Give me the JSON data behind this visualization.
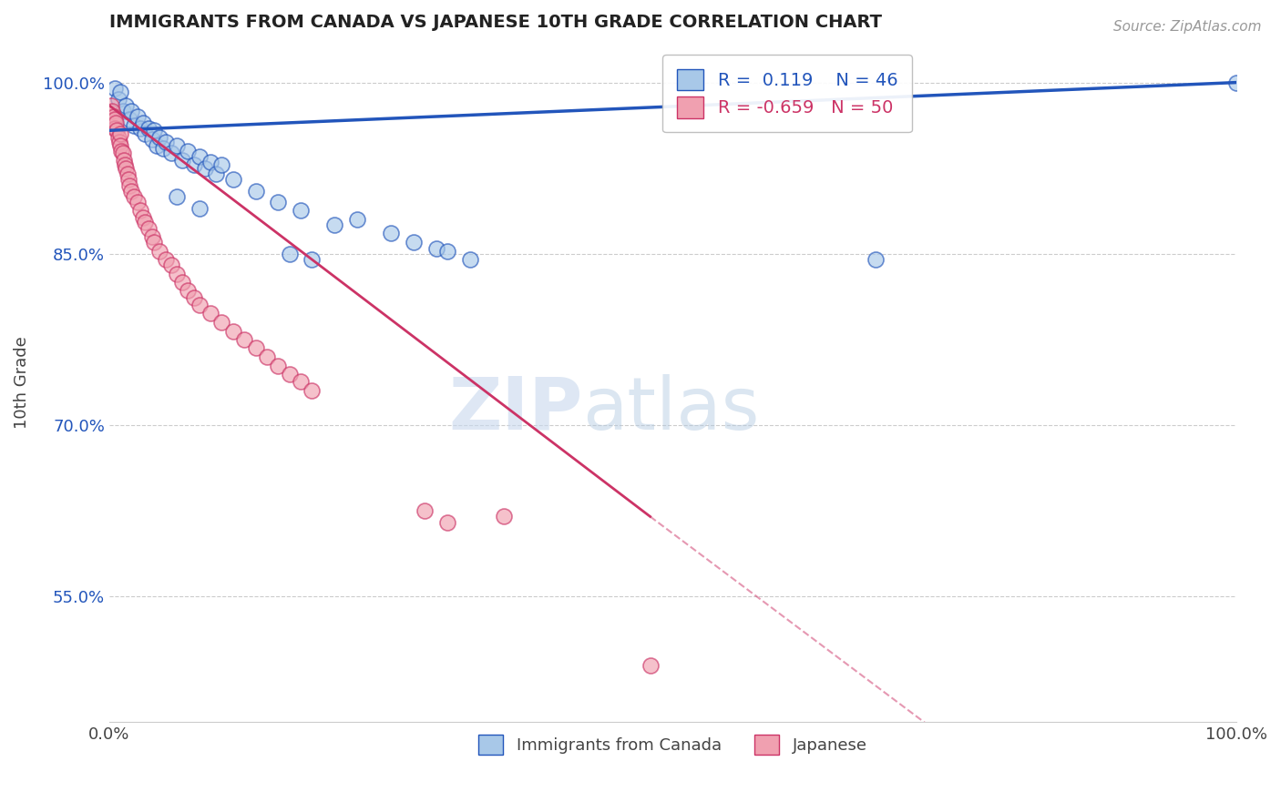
{
  "title": "IMMIGRANTS FROM CANADA VS JAPANESE 10TH GRADE CORRELATION CHART",
  "source_text": "Source: ZipAtlas.com",
  "ylabel": "10th Grade",
  "xlim": [
    0.0,
    1.0
  ],
  "ylim": [
    0.44,
    1.035
  ],
  "x_ticks": [
    0.0,
    1.0
  ],
  "x_tick_labels": [
    "0.0%",
    "100.0%"
  ],
  "y_ticks": [
    0.55,
    0.7,
    0.85,
    1.0
  ],
  "y_tick_labels": [
    "55.0%",
    "70.0%",
    "85.0%",
    "100.0%"
  ],
  "legend_blue_label": "Immigrants from Canada",
  "legend_pink_label": "Japanese",
  "R_blue": 0.119,
  "N_blue": 46,
  "R_pink": -0.659,
  "N_pink": 50,
  "blue_color": "#a8c8e8",
  "pink_color": "#f0a0b0",
  "blue_line_color": "#2255bb",
  "pink_line_color": "#cc3366",
  "blue_scatter": [
    [
      0.005,
      0.995
    ],
    [
      0.008,
      0.985
    ],
    [
      0.01,
      0.992
    ],
    [
      0.012,
      0.975
    ],
    [
      0.015,
      0.98
    ],
    [
      0.018,
      0.968
    ],
    [
      0.02,
      0.975
    ],
    [
      0.022,
      0.962
    ],
    [
      0.025,
      0.97
    ],
    [
      0.028,
      0.96
    ],
    [
      0.03,
      0.965
    ],
    [
      0.032,
      0.955
    ],
    [
      0.035,
      0.96
    ],
    [
      0.038,
      0.95
    ],
    [
      0.04,
      0.958
    ],
    [
      0.042,
      0.945
    ],
    [
      0.045,
      0.952
    ],
    [
      0.048,
      0.942
    ],
    [
      0.05,
      0.948
    ],
    [
      0.055,
      0.938
    ],
    [
      0.06,
      0.945
    ],
    [
      0.065,
      0.932
    ],
    [
      0.07,
      0.94
    ],
    [
      0.075,
      0.928
    ],
    [
      0.08,
      0.935
    ],
    [
      0.085,
      0.925
    ],
    [
      0.09,
      0.93
    ],
    [
      0.095,
      0.92
    ],
    [
      0.1,
      0.928
    ],
    [
      0.11,
      0.915
    ],
    [
      0.13,
      0.905
    ],
    [
      0.15,
      0.895
    ],
    [
      0.17,
      0.888
    ],
    [
      0.2,
      0.875
    ],
    [
      0.22,
      0.88
    ],
    [
      0.25,
      0.868
    ],
    [
      0.27,
      0.86
    ],
    [
      0.29,
      0.855
    ],
    [
      0.06,
      0.9
    ],
    [
      0.08,
      0.89
    ],
    [
      0.16,
      0.85
    ],
    [
      0.18,
      0.845
    ],
    [
      0.3,
      0.852
    ],
    [
      0.32,
      0.845
    ],
    [
      0.68,
      0.845
    ],
    [
      1.0,
      1.0
    ]
  ],
  "pink_scatter": [
    [
      0.002,
      0.98
    ],
    [
      0.003,
      0.975
    ],
    [
      0.004,
      0.97
    ],
    [
      0.005,
      0.968
    ],
    [
      0.005,
      0.96
    ],
    [
      0.006,
      0.965
    ],
    [
      0.007,
      0.958
    ],
    [
      0.008,
      0.952
    ],
    [
      0.009,
      0.948
    ],
    [
      0.01,
      0.955
    ],
    [
      0.01,
      0.945
    ],
    [
      0.011,
      0.94
    ],
    [
      0.012,
      0.938
    ],
    [
      0.013,
      0.932
    ],
    [
      0.014,
      0.928
    ],
    [
      0.015,
      0.925
    ],
    [
      0.016,
      0.92
    ],
    [
      0.017,
      0.915
    ],
    [
      0.018,
      0.91
    ],
    [
      0.02,
      0.905
    ],
    [
      0.022,
      0.9
    ],
    [
      0.025,
      0.895
    ],
    [
      0.028,
      0.888
    ],
    [
      0.03,
      0.882
    ],
    [
      0.032,
      0.878
    ],
    [
      0.035,
      0.872
    ],
    [
      0.038,
      0.865
    ],
    [
      0.04,
      0.86
    ],
    [
      0.045,
      0.852
    ],
    [
      0.05,
      0.845
    ],
    [
      0.055,
      0.84
    ],
    [
      0.06,
      0.832
    ],
    [
      0.065,
      0.825
    ],
    [
      0.07,
      0.818
    ],
    [
      0.075,
      0.812
    ],
    [
      0.08,
      0.805
    ],
    [
      0.09,
      0.798
    ],
    [
      0.1,
      0.79
    ],
    [
      0.11,
      0.782
    ],
    [
      0.12,
      0.775
    ],
    [
      0.13,
      0.768
    ],
    [
      0.14,
      0.76
    ],
    [
      0.15,
      0.752
    ],
    [
      0.16,
      0.745
    ],
    [
      0.17,
      0.738
    ],
    [
      0.18,
      0.73
    ],
    [
      0.28,
      0.625
    ],
    [
      0.3,
      0.615
    ],
    [
      0.35,
      0.62
    ],
    [
      0.48,
      0.49
    ]
  ],
  "blue_line": [
    [
      0.0,
      0.958
    ],
    [
      1.0,
      1.0
    ]
  ],
  "pink_line_solid": [
    [
      0.0,
      0.98
    ],
    [
      0.48,
      0.62
    ]
  ],
  "pink_line_dash": [
    [
      0.48,
      0.62
    ],
    [
      1.0,
      0.235
    ]
  ],
  "watermark_zip": "ZIP",
  "watermark_atlas": "atlas",
  "background_color": "#ffffff",
  "grid_color": "#cccccc"
}
